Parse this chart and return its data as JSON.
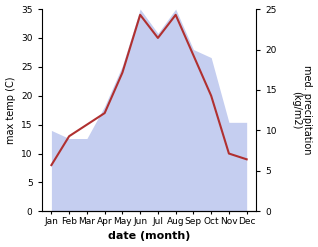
{
  "months": [
    "Jan",
    "Feb",
    "Mar",
    "Apr",
    "May",
    "Jun",
    "Jul",
    "Aug",
    "Sep",
    "Oct",
    "Nov",
    "Dec"
  ],
  "temperature": [
    8,
    13,
    15,
    17,
    24,
    34,
    30,
    34,
    27,
    20,
    10,
    9
  ],
  "precipitation": [
    10,
    9,
    9,
    13,
    18,
    25,
    22,
    25,
    20,
    19,
    11,
    11
  ],
  "temp_color": "#b03030",
  "precip_color_fill": "#c5cef0",
  "temp_ylim": [
    0,
    35
  ],
  "precip_ylim": [
    0,
    25
  ],
  "temp_yticks": [
    0,
    5,
    10,
    15,
    20,
    25,
    30,
    35
  ],
  "precip_yticks": [
    0,
    5,
    10,
    15,
    20,
    25
  ],
  "xlabel": "date (month)",
  "ylabel_left": "max temp (C)",
  "ylabel_right": "med. precipitation\n(kg/m2)",
  "bg_color": "#ffffff",
  "tick_fontsize": 6.5,
  "label_fontsize": 7,
  "xlabel_fontsize": 8
}
